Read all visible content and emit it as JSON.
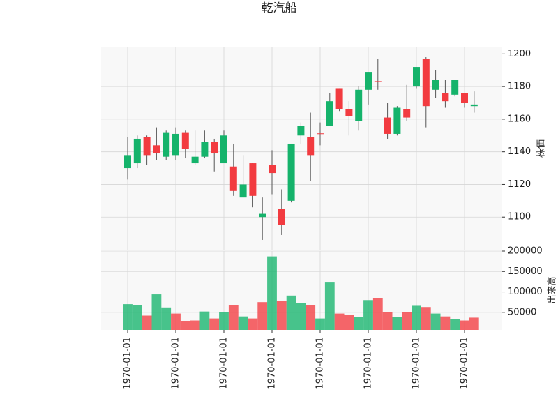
{
  "chart_data": {
    "type": "candlestick",
    "title": "乾汽船",
    "categories": [
      "1970-01-01",
      null,
      null,
      null,
      null,
      "1970-01-01",
      null,
      null,
      null,
      null,
      "1970-01-01",
      null,
      null,
      null,
      null,
      "1970-01-01",
      null,
      null,
      null,
      null,
      "1970-01-01",
      null,
      null,
      null,
      null,
      "1970-01-01",
      null,
      null,
      null,
      null,
      "1970-01-01",
      null,
      null,
      null,
      null,
      "1970-01-01",
      null
    ],
    "open": [
      1130,
      1133,
      1149,
      1144,
      1137,
      1138,
      1152,
      1133,
      1137,
      1146,
      1133,
      1131,
      1112,
      1133,
      1100,
      1132,
      1105,
      1110,
      1150,
      1149,
      1151.3,
      1156,
      1179,
      1166,
      1159,
      1178,
      1183.3,
      1161,
      1151,
      1166,
      1180,
      1197,
      1178,
      1176,
      1175,
      1176,
      1168
    ],
    "high": [
      1149,
      1150,
      1150,
      1155,
      1153,
      1155,
      1153,
      1153,
      1153,
      1148,
      1153,
      1145,
      1138,
      1133,
      1112,
      1141,
      1117,
      1145,
      1158,
      1164,
      1158,
      1176,
      1179,
      1171,
      1180,
      1189,
      1197,
      1170,
      1168,
      1181,
      1192,
      1198,
      1190,
      1184,
      1184,
      1176,
      1177
    ],
    "low": [
      1123,
      1130,
      1132,
      1135,
      1135,
      1135,
      1136,
      1132,
      1136,
      1128,
      1133,
      1113,
      1112,
      1106,
      1086,
      1114,
      1089,
      1109,
      1145,
      1122,
      1144,
      1156,
      1165,
      1150,
      1153,
      1169,
      1178,
      1148,
      1150,
      1159,
      1179,
      1155,
      1173,
      1167,
      1174,
      1167,
      1164
    ],
    "close": [
      1138,
      1148,
      1138,
      1139,
      1152,
      1151,
      1142,
      1137,
      1146,
      1139,
      1150,
      1116,
      1120,
      1113,
      1102,
      1127,
      1095,
      1145,
      1156,
      1138,
      1151,
      1171,
      1166,
      1162,
      1178,
      1189,
      1183,
      1151,
      1167,
      1161,
      1192,
      1168,
      1184,
      1171,
      1184,
      1170,
      1169
    ],
    "volume": [
      70000,
      67000,
      42000,
      94000,
      62000,
      47000,
      28000,
      30000,
      52000,
      35000,
      51000,
      68000,
      40000,
      35000,
      75000,
      187000,
      78000,
      91000,
      72000,
      67000,
      35000,
      123000,
      47000,
      44000,
      38000,
      80000,
      84000,
      51000,
      39000,
      50000,
      66000,
      63000,
      47000,
      40000,
      34000,
      30000,
      37000
    ],
    "up_color": "#15b36b",
    "down_color": "#f23b40",
    "volume_color_by_prev_close": true,
    "ylabel": "株価",
    "ylim": [
      1080,
      1204
    ],
    "yticks": [
      1100,
      1120,
      1140,
      1160,
      1180,
      1200
    ],
    "volume_ylabel": "出来高",
    "volume_ylim": [
      7000,
      200000
    ],
    "volume_yticks": [
      50000,
      100000,
      150000,
      200000
    ],
    "grid": true
  }
}
